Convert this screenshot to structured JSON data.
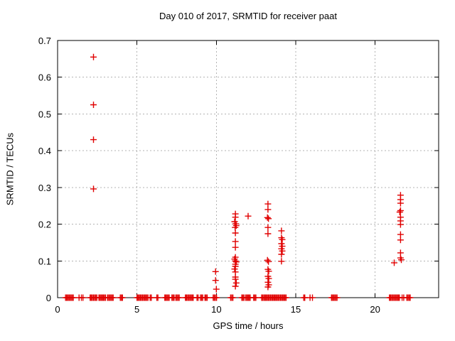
{
  "chart_data": {
    "type": "scatter",
    "title": "Day 010 of 2017, SRMTID for receiver paat",
    "xlabel": "GPS time / hours",
    "ylabel": "SRMTID / TECUs",
    "xlim": [
      0,
      24
    ],
    "ylim": [
      0,
      0.7
    ],
    "grid": "dotted",
    "legend": "none",
    "marker": "plus",
    "marker_size": 9,
    "marker_color": "#e00000",
    "grid_color": "#b3b3b3",
    "xticks": [
      [
        0,
        "0"
      ],
      [
        5,
        "5"
      ],
      [
        10,
        "10"
      ],
      [
        15,
        "15"
      ],
      [
        20,
        "20"
      ]
    ],
    "yticks": [
      [
        0,
        "0"
      ],
      [
        0.1,
        "0.1"
      ],
      [
        0.2,
        "0.2"
      ],
      [
        0.3,
        "0.3"
      ],
      [
        0.4,
        "0.4"
      ],
      [
        0.5,
        "0.5"
      ],
      [
        0.6,
        "0.6"
      ],
      [
        0.7,
        "0.7"
      ]
    ],
    "points": [
      [
        2.26,
        0.655
      ],
      [
        2.26,
        0.525
      ],
      [
        2.26,
        0.43
      ],
      [
        2.26,
        0.296
      ],
      [
        9.95,
        0.071
      ],
      [
        9.95,
        0.047
      ],
      [
        10.0,
        0.023
      ],
      [
        11.2,
        0.228
      ],
      [
        11.2,
        0.219
      ],
      [
        11.15,
        0.207
      ],
      [
        11.22,
        0.201
      ],
      [
        11.25,
        0.196
      ],
      [
        11.18,
        0.191
      ],
      [
        11.2,
        0.176
      ],
      [
        11.2,
        0.153
      ],
      [
        11.2,
        0.137
      ],
      [
        11.2,
        0.11
      ],
      [
        11.15,
        0.105
      ],
      [
        11.2,
        0.1
      ],
      [
        11.25,
        0.097
      ],
      [
        11.2,
        0.091
      ],
      [
        11.2,
        0.085
      ],
      [
        11.15,
        0.078
      ],
      [
        11.2,
        0.07
      ],
      [
        11.2,
        0.056
      ],
      [
        11.2,
        0.05
      ],
      [
        11.25,
        0.04
      ],
      [
        11.2,
        0.031
      ],
      [
        12.0,
        0.222
      ],
      [
        13.25,
        0.255
      ],
      [
        13.25,
        0.24
      ],
      [
        13.22,
        0.218
      ],
      [
        13.28,
        0.215
      ],
      [
        13.25,
        0.191
      ],
      [
        13.25,
        0.174
      ],
      [
        13.22,
        0.102
      ],
      [
        13.28,
        0.098
      ],
      [
        13.25,
        0.077
      ],
      [
        13.3,
        0.072
      ],
      [
        13.25,
        0.058
      ],
      [
        13.3,
        0.052
      ],
      [
        13.25,
        0.042
      ],
      [
        13.3,
        0.035
      ],
      [
        13.25,
        0.029
      ],
      [
        14.1,
        0.182
      ],
      [
        14.1,
        0.163
      ],
      [
        14.15,
        0.158
      ],
      [
        14.1,
        0.147
      ],
      [
        14.15,
        0.14
      ],
      [
        14.1,
        0.133
      ],
      [
        14.15,
        0.127
      ],
      [
        14.1,
        0.118
      ],
      [
        14.1,
        0.099
      ],
      [
        21.6,
        0.279
      ],
      [
        21.6,
        0.267
      ],
      [
        21.6,
        0.257
      ],
      [
        21.6,
        0.237
      ],
      [
        21.55,
        0.233
      ],
      [
        21.6,
        0.219
      ],
      [
        21.6,
        0.209
      ],
      [
        21.6,
        0.199
      ],
      [
        21.6,
        0.172
      ],
      [
        21.6,
        0.157
      ],
      [
        21.6,
        0.122
      ],
      [
        21.6,
        0.108
      ],
      [
        21.65,
        0.103
      ],
      [
        21.2,
        0.095
      ]
    ],
    "zero_segments": [
      [
        0.5,
        1.0
      ],
      [
        2.05,
        2.5
      ],
      [
        2.6,
        3.05
      ],
      [
        3.15,
        3.5
      ],
      [
        3.95,
        4.1
      ],
      [
        5.0,
        5.5
      ],
      [
        5.55,
        5.7
      ],
      [
        5.83,
        5.93
      ],
      [
        6.25,
        6.37
      ],
      [
        6.75,
        7.05
      ],
      [
        7.2,
        7.35
      ],
      [
        7.45,
        7.7
      ],
      [
        8.05,
        8.35
      ],
      [
        8.4,
        8.55
      ],
      [
        8.78,
        8.85
      ],
      [
        9.0,
        9.15
      ],
      [
        9.28,
        9.45
      ],
      [
        9.8,
        10.05
      ],
      [
        10.9,
        11.1
      ],
      [
        11.6,
        11.78
      ],
      [
        11.85,
        12.15
      ],
      [
        12.35,
        12.55
      ],
      [
        12.85,
        14.45
      ],
      [
        15.5,
        15.62
      ],
      [
        17.25,
        17.6
      ],
      [
        20.9,
        21.55
      ],
      [
        22.0,
        22.25
      ]
    ],
    "zero_singles": [
      1.35,
      1.5,
      1.6,
      15.9,
      16.05,
      21.7,
      21.8
    ]
  }
}
